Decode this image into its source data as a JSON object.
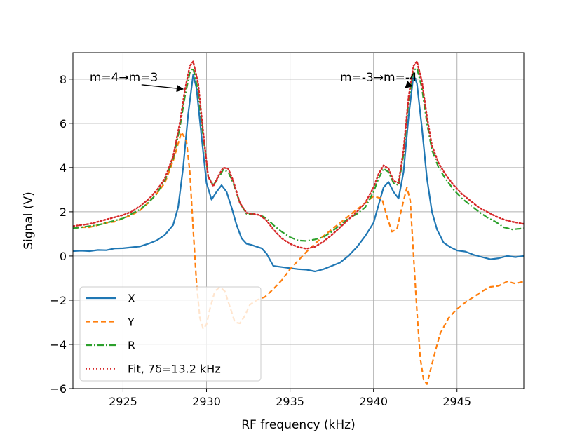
{
  "chart_data": {
    "type": "line",
    "xlabel": "RF frequency (kHz)",
    "ylabel": "Signal (V)",
    "xlim": [
      2922,
      2949
    ],
    "ylim": [
      -6,
      9.2
    ],
    "xticks": [
      2925,
      2930,
      2935,
      2940,
      2945
    ],
    "yticks": [
      -6,
      -4,
      -2,
      0,
      2,
      4,
      6,
      8
    ],
    "xtick_labels": [
      "2925",
      "2930",
      "2935",
      "2940",
      "2945"
    ],
    "ytick_labels": [
      "−6",
      "−4",
      "−2",
      "0",
      "2",
      "4",
      "6",
      "8"
    ],
    "grid": true,
    "legend_position": "lower-left",
    "annotations": [
      {
        "text": "m=4→m=3",
        "text_xy": [
          2923.0,
          8.0
        ],
        "arrow_to": [
          2928.6,
          7.55
        ]
      },
      {
        "text": "m=-3→m=-4",
        "text_xy": [
          2938.0,
          8.0
        ],
        "arrow_to": [
          2941.9,
          7.6
        ]
      }
    ],
    "series": [
      {
        "name": "X",
        "color": "#1f77b4",
        "dash": "solid",
        "width": 2.2,
        "points": [
          [
            2922.0,
            0.22
          ],
          [
            2922.5,
            0.24
          ],
          [
            2923.0,
            0.22
          ],
          [
            2923.5,
            0.27
          ],
          [
            2924.0,
            0.26
          ],
          [
            2924.5,
            0.34
          ],
          [
            2925.0,
            0.35
          ],
          [
            2925.5,
            0.39
          ],
          [
            2926.0,
            0.43
          ],
          [
            2926.5,
            0.55
          ],
          [
            2927.0,
            0.7
          ],
          [
            2927.5,
            0.95
          ],
          [
            2928.0,
            1.4
          ],
          [
            2928.3,
            2.2
          ],
          [
            2928.6,
            4.0
          ],
          [
            2928.9,
            6.4
          ],
          [
            2929.2,
            8.2
          ],
          [
            2929.4,
            7.6
          ],
          [
            2929.7,
            5.4
          ],
          [
            2930.0,
            3.3
          ],
          [
            2930.3,
            2.55
          ],
          [
            2930.6,
            2.9
          ],
          [
            2930.9,
            3.2
          ],
          [
            2931.2,
            2.9
          ],
          [
            2931.5,
            2.2
          ],
          [
            2931.8,
            1.4
          ],
          [
            2932.1,
            0.8
          ],
          [
            2932.4,
            0.55
          ],
          [
            2932.7,
            0.5
          ],
          [
            2933.0,
            0.42
          ],
          [
            2933.3,
            0.35
          ],
          [
            2933.6,
            0.1
          ],
          [
            2934.0,
            -0.45
          ],
          [
            2934.5,
            -0.5
          ],
          [
            2935.0,
            -0.55
          ],
          [
            2935.5,
            -0.6
          ],
          [
            2936.0,
            -0.62
          ],
          [
            2936.5,
            -0.7
          ],
          [
            2937.0,
            -0.6
          ],
          [
            2937.5,
            -0.45
          ],
          [
            2938.0,
            -0.3
          ],
          [
            2938.5,
            0.0
          ],
          [
            2939.0,
            0.4
          ],
          [
            2939.5,
            0.9
          ],
          [
            2940.0,
            1.5
          ],
          [
            2940.3,
            2.3
          ],
          [
            2940.6,
            3.1
          ],
          [
            2940.9,
            3.35
          ],
          [
            2941.2,
            2.9
          ],
          [
            2941.5,
            2.6
          ],
          [
            2941.8,
            3.8
          ],
          [
            2942.1,
            6.3
          ],
          [
            2942.4,
            8.2
          ],
          [
            2942.6,
            7.8
          ],
          [
            2942.9,
            5.8
          ],
          [
            2943.2,
            3.5
          ],
          [
            2943.5,
            2.0
          ],
          [
            2943.8,
            1.2
          ],
          [
            2944.2,
            0.6
          ],
          [
            2944.6,
            0.4
          ],
          [
            2945.0,
            0.25
          ],
          [
            2945.5,
            0.2
          ],
          [
            2946.0,
            0.05
          ],
          [
            2946.5,
            -0.05
          ],
          [
            2947.0,
            -0.15
          ],
          [
            2947.5,
            -0.1
          ],
          [
            2948.0,
            0.0
          ],
          [
            2948.5,
            -0.05
          ],
          [
            2949.0,
            0.0
          ]
        ]
      },
      {
        "name": "Y",
        "color": "#ff7f0e",
        "dash": "7,4",
        "width": 2.2,
        "points": [
          [
            2922.0,
            1.25
          ],
          [
            2922.5,
            1.3
          ],
          [
            2923.0,
            1.3
          ],
          [
            2923.5,
            1.4
          ],
          [
            2924.0,
            1.5
          ],
          [
            2924.5,
            1.55
          ],
          [
            2925.0,
            1.7
          ],
          [
            2925.5,
            1.85
          ],
          [
            2926.0,
            2.05
          ],
          [
            2926.5,
            2.4
          ],
          [
            2927.0,
            2.8
          ],
          [
            2927.5,
            3.3
          ],
          [
            2928.0,
            4.3
          ],
          [
            2928.5,
            5.6
          ],
          [
            2928.8,
            5.2
          ],
          [
            2929.0,
            3.8
          ],
          [
            2929.2,
            1.2
          ],
          [
            2929.4,
            -1.2
          ],
          [
            2929.6,
            -2.8
          ],
          [
            2929.8,
            -3.3
          ],
          [
            2930.0,
            -3.1
          ],
          [
            2930.2,
            -2.4
          ],
          [
            2930.5,
            -1.6
          ],
          [
            2930.8,
            -1.4
          ],
          [
            2931.1,
            -1.6
          ],
          [
            2931.4,
            -2.3
          ],
          [
            2931.7,
            -3.0
          ],
          [
            2932.0,
            -3.05
          ],
          [
            2932.3,
            -2.7
          ],
          [
            2932.6,
            -2.2
          ],
          [
            2933.0,
            -2.0
          ],
          [
            2933.5,
            -1.85
          ],
          [
            2934.0,
            -1.5
          ],
          [
            2934.5,
            -1.1
          ],
          [
            2935.0,
            -0.6
          ],
          [
            2935.5,
            -0.2
          ],
          [
            2936.0,
            0.2
          ],
          [
            2936.5,
            0.55
          ],
          [
            2937.0,
            0.9
          ],
          [
            2937.5,
            1.2
          ],
          [
            2938.0,
            1.5
          ],
          [
            2938.5,
            1.8
          ],
          [
            2939.0,
            2.1
          ],
          [
            2939.5,
            2.4
          ],
          [
            2940.0,
            2.7
          ],
          [
            2940.5,
            2.6
          ],
          [
            2940.8,
            1.8
          ],
          [
            2941.1,
            1.1
          ],
          [
            2941.4,
            1.2
          ],
          [
            2941.7,
            2.2
          ],
          [
            2942.0,
            3.1
          ],
          [
            2942.2,
            2.5
          ],
          [
            2942.4,
            0.0
          ],
          [
            2942.6,
            -2.5
          ],
          [
            2942.8,
            -4.6
          ],
          [
            2943.0,
            -5.6
          ],
          [
            2943.2,
            -5.8
          ],
          [
            2943.4,
            -5.2
          ],
          [
            2943.7,
            -4.3
          ],
          [
            2944.0,
            -3.5
          ],
          [
            2944.5,
            -2.8
          ],
          [
            2945.0,
            -2.4
          ],
          [
            2945.5,
            -2.1
          ],
          [
            2946.0,
            -1.85
          ],
          [
            2946.5,
            -1.6
          ],
          [
            2947.0,
            -1.4
          ],
          [
            2947.5,
            -1.35
          ],
          [
            2948.0,
            -1.15
          ],
          [
            2948.5,
            -1.25
          ],
          [
            2949.0,
            -1.15
          ]
        ]
      },
      {
        "name": "R",
        "color": "#2ca02c",
        "dash": "9,3,2,3",
        "width": 2.2,
        "points": [
          [
            2922.0,
            1.25
          ],
          [
            2922.5,
            1.3
          ],
          [
            2923.0,
            1.35
          ],
          [
            2923.5,
            1.4
          ],
          [
            2924.0,
            1.5
          ],
          [
            2924.5,
            1.6
          ],
          [
            2925.0,
            1.7
          ],
          [
            2925.5,
            1.9
          ],
          [
            2926.0,
            2.1
          ],
          [
            2926.5,
            2.4
          ],
          [
            2927.0,
            2.8
          ],
          [
            2927.5,
            3.4
          ],
          [
            2928.0,
            4.4
          ],
          [
            2928.4,
            5.8
          ],
          [
            2928.7,
            7.2
          ],
          [
            2929.0,
            8.3
          ],
          [
            2929.2,
            8.5
          ],
          [
            2929.5,
            7.4
          ],
          [
            2929.8,
            5.4
          ],
          [
            2930.1,
            3.6
          ],
          [
            2930.4,
            3.2
          ],
          [
            2930.7,
            3.5
          ],
          [
            2931.0,
            3.9
          ],
          [
            2931.3,
            3.8
          ],
          [
            2931.6,
            3.3
          ],
          [
            2932.0,
            2.4
          ],
          [
            2932.4,
            1.9
          ],
          [
            2932.8,
            1.9
          ],
          [
            2933.2,
            1.85
          ],
          [
            2933.6,
            1.7
          ],
          [
            2934.0,
            1.4
          ],
          [
            2934.5,
            1.1
          ],
          [
            2935.0,
            0.85
          ],
          [
            2935.5,
            0.7
          ],
          [
            2936.0,
            0.68
          ],
          [
            2936.5,
            0.75
          ],
          [
            2937.0,
            0.85
          ],
          [
            2937.5,
            1.1
          ],
          [
            2938.0,
            1.4
          ],
          [
            2938.5,
            1.7
          ],
          [
            2939.0,
            1.9
          ],
          [
            2939.5,
            2.2
          ],
          [
            2940.0,
            2.9
          ],
          [
            2940.3,
            3.5
          ],
          [
            2940.6,
            3.95
          ],
          [
            2940.9,
            3.8
          ],
          [
            2941.2,
            3.3
          ],
          [
            2941.5,
            3.2
          ],
          [
            2941.8,
            4.6
          ],
          [
            2942.1,
            7.0
          ],
          [
            2942.4,
            8.4
          ],
          [
            2942.6,
            8.5
          ],
          [
            2942.9,
            7.6
          ],
          [
            2943.2,
            6.0
          ],
          [
            2943.5,
            4.8
          ],
          [
            2943.9,
            4.0
          ],
          [
            2944.3,
            3.5
          ],
          [
            2944.8,
            3.0
          ],
          [
            2945.3,
            2.6
          ],
          [
            2945.8,
            2.3
          ],
          [
            2946.3,
            2.0
          ],
          [
            2946.8,
            1.75
          ],
          [
            2947.3,
            1.55
          ],
          [
            2947.8,
            1.3
          ],
          [
            2948.3,
            1.2
          ],
          [
            2949.0,
            1.25
          ]
        ]
      },
      {
        "name": "Fit, 7δ=13.2 kHz",
        "color": "#d62728",
        "dash": "2,3",
        "width": 2.4,
        "points": [
          [
            2922.0,
            1.35
          ],
          [
            2922.5,
            1.4
          ],
          [
            2923.0,
            1.45
          ],
          [
            2923.5,
            1.55
          ],
          [
            2924.0,
            1.65
          ],
          [
            2924.5,
            1.75
          ],
          [
            2925.0,
            1.85
          ],
          [
            2925.5,
            2.0
          ],
          [
            2926.0,
            2.25
          ],
          [
            2926.5,
            2.55
          ],
          [
            2927.0,
            2.95
          ],
          [
            2927.5,
            3.5
          ],
          [
            2928.0,
            4.5
          ],
          [
            2928.4,
            6.0
          ],
          [
            2928.7,
            7.5
          ],
          [
            2929.0,
            8.6
          ],
          [
            2929.2,
            8.8
          ],
          [
            2929.5,
            7.8
          ],
          [
            2929.8,
            5.6
          ],
          [
            2930.1,
            3.6
          ],
          [
            2930.4,
            3.15
          ],
          [
            2930.7,
            3.6
          ],
          [
            2931.0,
            4.0
          ],
          [
            2931.3,
            3.95
          ],
          [
            2931.6,
            3.4
          ],
          [
            2932.0,
            2.4
          ],
          [
            2932.4,
            1.95
          ],
          [
            2932.8,
            1.9
          ],
          [
            2933.2,
            1.85
          ],
          [
            2933.6,
            1.6
          ],
          [
            2934.0,
            1.2
          ],
          [
            2934.5,
            0.8
          ],
          [
            2935.0,
            0.55
          ],
          [
            2935.5,
            0.4
          ],
          [
            2936.0,
            0.33
          ],
          [
            2936.5,
            0.42
          ],
          [
            2937.0,
            0.65
          ],
          [
            2937.5,
            0.95
          ],
          [
            2938.0,
            1.3
          ],
          [
            2938.5,
            1.65
          ],
          [
            2939.0,
            2.0
          ],
          [
            2939.5,
            2.4
          ],
          [
            2940.0,
            3.1
          ],
          [
            2940.3,
            3.7
          ],
          [
            2940.6,
            4.1
          ],
          [
            2940.9,
            3.95
          ],
          [
            2941.2,
            3.4
          ],
          [
            2941.5,
            3.3
          ],
          [
            2941.8,
            4.8
          ],
          [
            2942.1,
            7.2
          ],
          [
            2942.4,
            8.6
          ],
          [
            2942.6,
            8.8
          ],
          [
            2942.9,
            7.9
          ],
          [
            2943.2,
            6.3
          ],
          [
            2943.5,
            5.0
          ],
          [
            2943.9,
            4.2
          ],
          [
            2944.3,
            3.7
          ],
          [
            2944.8,
            3.2
          ],
          [
            2945.3,
            2.8
          ],
          [
            2945.8,
            2.5
          ],
          [
            2946.3,
            2.2
          ],
          [
            2946.8,
            2.0
          ],
          [
            2947.3,
            1.8
          ],
          [
            2947.8,
            1.65
          ],
          [
            2948.3,
            1.55
          ],
          [
            2949.0,
            1.45
          ]
        ]
      }
    ]
  }
}
